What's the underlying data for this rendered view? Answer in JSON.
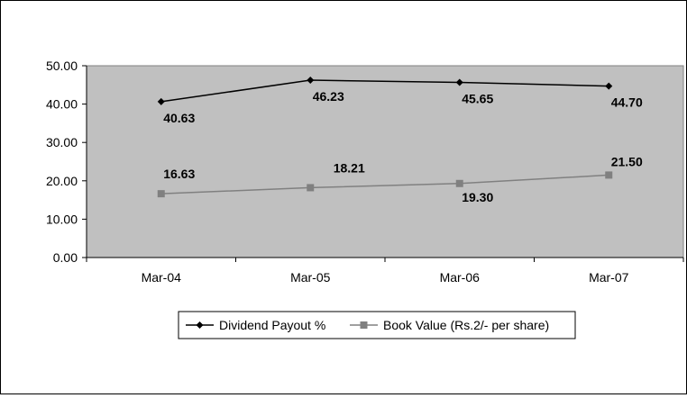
{
  "chart_data": {
    "type": "line",
    "title": "",
    "xlabel": "",
    "ylabel": "",
    "categories": [
      "Mar-04",
      "Mar-05",
      "Mar-06",
      "Mar-07"
    ],
    "ylim": [
      0,
      50
    ],
    "y_ticks": [
      "0.00",
      "10.00",
      "20.00",
      "30.00",
      "40.00",
      "50.00"
    ],
    "grid": false,
    "plot_background": "#c0c0c0",
    "legend_position": "bottom",
    "series": [
      {
        "name": "Dividend Payout %",
        "values": [
          40.63,
          46.23,
          45.65,
          44.7
        ],
        "labels": [
          "40.63",
          "46.23",
          "45.65",
          "44.70"
        ],
        "color": "#000000",
        "marker": "diamond"
      },
      {
        "name": "Book Value (Rs.2/- per share)",
        "values": [
          16.63,
          18.21,
          19.3,
          21.5
        ],
        "labels": [
          "16.63",
          "18.21",
          "19.30",
          "21.50"
        ],
        "color": "#808080",
        "marker": "square"
      }
    ]
  }
}
